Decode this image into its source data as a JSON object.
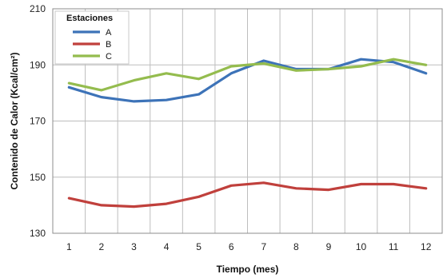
{
  "chart_data": {
    "type": "line",
    "title": "",
    "xlabel": "Tiempo (mes)",
    "ylabel": "Contenido de Calor (Kcal/cm²)",
    "x": [
      1,
      2,
      3,
      4,
      5,
      6,
      7,
      8,
      9,
      10,
      11,
      12
    ],
    "ylim": [
      130,
      210
    ],
    "yticks": [
      130,
      150,
      170,
      190,
      210
    ],
    "grid": true,
    "legend_title": "Estaciones",
    "legend_position": "top-left",
    "series": [
      {
        "name": "A",
        "color": "#3d73b8",
        "values": [
          182,
          178.5,
          177,
          177.5,
          179.5,
          187,
          191.5,
          188.5,
          188.5,
          192,
          191,
          187
        ]
      },
      {
        "name": "B",
        "color": "#c0403c",
        "values": [
          142.5,
          140,
          139.5,
          140.5,
          143,
          147,
          148,
          146,
          145.5,
          147.5,
          147.5,
          146
        ]
      },
      {
        "name": "C",
        "color": "#94bc4e",
        "values": [
          183.5,
          181,
          184.5,
          187,
          185,
          189.5,
          190.5,
          188,
          188.5,
          189.5,
          192,
          190
        ]
      }
    ]
  }
}
